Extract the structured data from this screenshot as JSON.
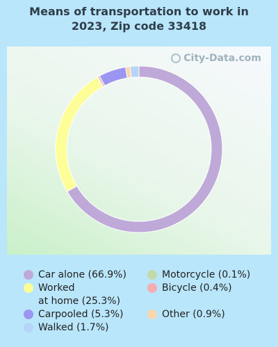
{
  "chart_data": {
    "type": "pie",
    "title": [
      "Means of transportation to work in",
      "2023, Zip code 33418"
    ],
    "watermark": "City-Data.com",
    "slices": [
      {
        "label": "Car alone",
        "label_text": "Car alone (66.9%)",
        "value": 66.9,
        "color": "#bea9d9"
      },
      {
        "label": "Worked at home",
        "label_text": "Worked\nat home (25.3%)",
        "value": 25.3,
        "color": "#fdfe97"
      },
      {
        "label": "Motorcycle",
        "label_text": "Motorcycle (0.1%)",
        "value": 0.1,
        "color": "#c3d9aa"
      },
      {
        "label": "Bicycle",
        "label_text": "Bicycle (0.4%)",
        "value": 0.4,
        "color": "#f2aeb0"
      },
      {
        "label": "Carpooled",
        "label_text": "Carpooled (5.3%)",
        "value": 5.3,
        "color": "#9a96f2"
      },
      {
        "label": "Other",
        "label_text": "Other (0.9%)",
        "value": 0.9,
        "color": "#fbd6af"
      },
      {
        "label": "Walked",
        "label_text": "Walked (1.7%)",
        "value": 1.7,
        "color": "#b6d4f6"
      }
    ],
    "legend_order": [
      "Car alone",
      "Worked at home",
      "Carpooled",
      "Walked",
      "Motorcycle",
      "Bicycle",
      "Other"
    ],
    "legend_placement": "bottom",
    "donut": true
  }
}
